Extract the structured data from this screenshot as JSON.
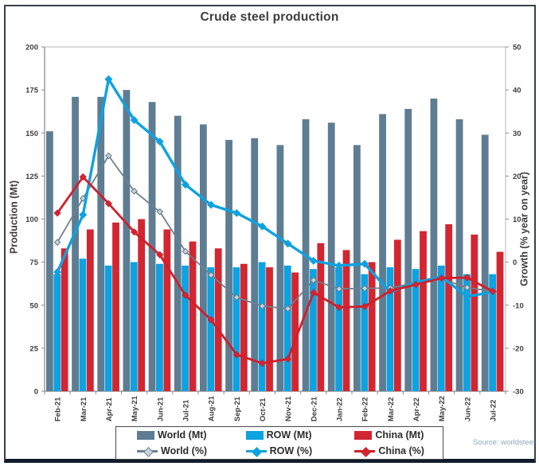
{
  "chart_data": {
    "type": "combo-bar-line",
    "title": "Crude steel production",
    "source": "Source: worldsteel",
    "grid": false,
    "legend_position": "bottom",
    "categories": [
      "Feb-21",
      "Mar-21",
      "Apr-21",
      "May-21",
      "Jun-21",
      "Jul-21",
      "Aug-21",
      "Sep-21",
      "Oct-21",
      "Nov-21",
      "Dec-21",
      "Jan-22",
      "Feb-22",
      "Mar-22",
      "Apr-22",
      "May-22",
      "Jun-22",
      "Jul-22"
    ],
    "left_axis": {
      "label": "Production (Mt)",
      "min": 0,
      "max": 200,
      "step": 25,
      "ticks": [
        0,
        25,
        50,
        75,
        100,
        125,
        150,
        175,
        200
      ]
    },
    "right_axis": {
      "label": "Growth (% year on year)",
      "min": -30,
      "max": 50,
      "step": 10,
      "ticks": [
        -30,
        -20,
        -10,
        0,
        10,
        20,
        30,
        40,
        50
      ]
    },
    "bar_series": [
      {
        "name": "World (Mt)",
        "axis": "left",
        "color": "#5e7d93",
        "values": [
          151,
          171,
          171,
          175,
          168,
          160,
          155,
          146,
          147,
          143,
          158,
          156,
          143,
          161,
          164,
          170,
          158,
          149
        ]
      },
      {
        "name": "ROW (Mt)",
        "axis": "left",
        "color": "#0da2e0",
        "values": [
          68,
          77,
          73,
          75,
          74,
          73,
          72,
          72,
          75,
          73,
          71,
          72,
          68,
          72,
          71,
          73,
          68,
          68
        ]
      },
      {
        "name": "China (Mt)",
        "axis": "left",
        "color": "#d22630",
        "values": [
          83,
          94,
          98,
          100,
          94,
          87,
          83,
          74,
          72,
          69,
          86,
          82,
          75,
          88,
          93,
          97,
          91,
          81
        ]
      }
    ],
    "line_series": [
      {
        "name": "World (%)",
        "axis": "right",
        "color": "#6e8090",
        "marker_fill": "#c9d3da",
        "values": [
          4.6,
          14.8,
          24.7,
          16.5,
          11.7,
          2.5,
          -3.0,
          -8.2,
          -10.2,
          -10.8,
          -4.2,
          -6.2,
          -6.1,
          -6.0,
          -4.8,
          -3.9,
          -5.9,
          -6.8
        ]
      },
      {
        "name": "ROW (%)",
        "axis": "right",
        "color": "#0da2e0",
        "marker_fill": "#0da2e0",
        "values": [
          -2.3,
          11.0,
          42.5,
          33.0,
          28.0,
          18.0,
          13.3,
          11.4,
          8.3,
          4.3,
          0.3,
          -0.8,
          -0.4,
          -7.0,
          -4.7,
          -3.4,
          -8.0,
          -6.9
        ]
      },
      {
        "name": "China (%)",
        "axis": "right",
        "color": "#cf1f2c",
        "marker_fill": "#d22630",
        "values": [
          11.4,
          19.8,
          13.6,
          7.0,
          1.7,
          -7.7,
          -13.4,
          -21.5,
          -23.5,
          -22.5,
          -7.1,
          -10.5,
          -10.3,
          -6.7,
          -5.2,
          -3.7,
          -3.6,
          -6.8
        ]
      }
    ]
  }
}
